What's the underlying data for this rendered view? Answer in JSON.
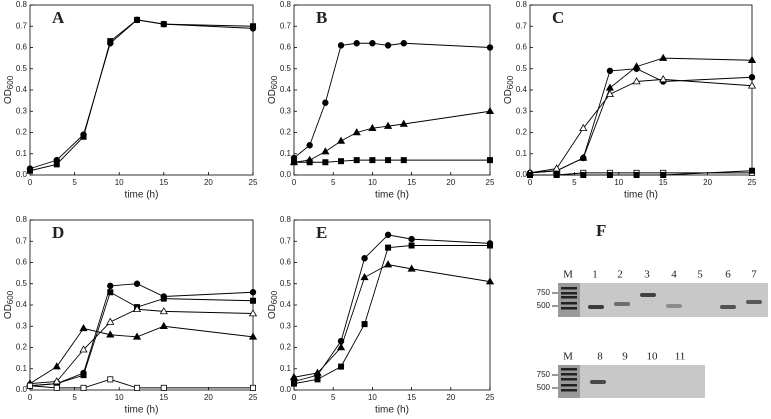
{
  "chart_data": [
    {
      "type": "line",
      "title": "A",
      "x_label": "time (h)",
      "y_label": "OD",
      "y_label_sub": "600",
      "x": [
        0,
        3,
        6,
        9,
        12,
        15,
        25
      ],
      "series": [
        {
          "marker": "circle",
          "filled": true,
          "color": "#000000",
          "values": [
            0.03,
            0.07,
            0.19,
            0.62,
            0.73,
            0.71,
            0.69
          ]
        },
        {
          "marker": "square",
          "filled": true,
          "color": "#000000",
          "values": [
            0.02,
            0.05,
            0.18,
            0.63,
            0.73,
            0.71,
            0.7
          ]
        }
      ],
      "xlim": [
        0,
        25
      ],
      "xticks": [
        0,
        5,
        10,
        15,
        20,
        25
      ],
      "ylim": [
        0,
        0.8
      ],
      "yticks": [
        {
          "value": 0,
          "label": "0.0"
        },
        0.1,
        0.2,
        0.3,
        0.4,
        0.5,
        0.6,
        0.7,
        0.8
      ]
    },
    {
      "type": "line",
      "title": "B",
      "x_label": "time (h)",
      "y_label": "OD",
      "y_label_sub": "600",
      "x": [
        0,
        2,
        4,
        6,
        8,
        10,
        12,
        14,
        25
      ],
      "series": [
        {
          "marker": "circle",
          "filled": true,
          "color": "#000000",
          "values": [
            0.08,
            0.14,
            0.34,
            0.61,
            0.62,
            0.62,
            0.61,
            0.62,
            0.6
          ]
        },
        {
          "marker": "triangle",
          "filled": true,
          "color": "#000000",
          "values": [
            0.06,
            0.07,
            0.11,
            0.16,
            0.2,
            0.22,
            0.23,
            0.24,
            0.3
          ]
        },
        {
          "marker": "square",
          "filled": true,
          "color": "#000000",
          "values": [
            0.06,
            0.06,
            0.06,
            0.065,
            0.07,
            0.07,
            0.07,
            0.07,
            0.07
          ]
        }
      ],
      "xlim": [
        0,
        25
      ],
      "xticks": [
        0,
        5,
        10,
        15,
        20,
        25
      ],
      "ylim": [
        0,
        0.8
      ],
      "yticks": [
        {
          "value": 0,
          "label": "0.0"
        },
        0.1,
        0.2,
        0.3,
        0.4,
        0.5,
        0.6,
        0.7,
        0.8
      ]
    },
    {
      "type": "line",
      "title": "C",
      "x_label": "time (h)",
      "y_label": "OD",
      "y_label_sub": "600",
      "x": [
        0,
        3,
        6,
        9,
        12,
        15,
        25
      ],
      "series": [
        {
          "marker": "circle",
          "filled": true,
          "color": "#000000",
          "values": [
            0.01,
            0.02,
            0.08,
            0.49,
            0.5,
            0.44,
            0.46
          ]
        },
        {
          "marker": "triangle",
          "filled": true,
          "color": "#000000",
          "values": [
            0.01,
            0.02,
            0.08,
            0.41,
            0.51,
            0.55,
            0.54
          ]
        },
        {
          "marker": "triangle",
          "filled": false,
          "color": "#000000",
          "values": [
            0.01,
            0.03,
            0.22,
            0.38,
            0.44,
            0.45,
            0.42
          ]
        },
        {
          "marker": "square",
          "filled": false,
          "color": "#000000",
          "values": [
            0,
            0,
            0.01,
            0.01,
            0.01,
            0.01,
            0.01
          ]
        },
        {
          "marker": "square",
          "filled": true,
          "color": "#000000",
          "values": [
            0,
            0,
            0,
            0,
            0,
            0,
            0.02
          ]
        }
      ],
      "xlim": [
        0,
        25
      ],
      "xticks": [
        0,
        5,
        10,
        15,
        20,
        25
      ],
      "ylim": [
        0,
        0.8
      ],
      "yticks": [
        {
          "value": 0,
          "label": "0.0"
        },
        0.1,
        0.2,
        0.3,
        0.4,
        0.5,
        0.6,
        0.7,
        0.8
      ]
    },
    {
      "type": "line",
      "title": "D",
      "x_label": "time (h)",
      "y_label": "OD",
      "y_label_sub": "600",
      "x": [
        0,
        3,
        6,
        9,
        12,
        15,
        25
      ],
      "series": [
        {
          "marker": "circle",
          "filled": true,
          "color": "#000000",
          "values": [
            0.02,
            0.03,
            0.08,
            0.49,
            0.5,
            0.44,
            0.46
          ]
        },
        {
          "marker": "square",
          "filled": true,
          "color": "#000000",
          "values": [
            0.02,
            0.03,
            0.07,
            0.46,
            0.39,
            0.43,
            0.42
          ]
        },
        {
          "marker": "triangle",
          "filled": false,
          "color": "#000000",
          "values": [
            0.03,
            0.04,
            0.19,
            0.32,
            0.38,
            0.37,
            0.36
          ]
        },
        {
          "marker": "triangle",
          "filled": true,
          "color": "#000000",
          "values": [
            0.03,
            0.11,
            0.29,
            0.26,
            0.25,
            0.3,
            0.25
          ]
        },
        {
          "marker": "square",
          "filled": false,
          "color": "#000000",
          "values": [
            0.02,
            0.01,
            0.01,
            0.05,
            0.01,
            0.01,
            0.01
          ]
        }
      ],
      "xlim": [
        0,
        25
      ],
      "xticks": [
        0,
        5,
        10,
        15,
        20,
        25
      ],
      "ylim": [
        0,
        0.8
      ],
      "yticks": [
        {
          "value": 0,
          "label": "0.0"
        },
        0.1,
        0.2,
        0.3,
        0.4,
        0.5,
        0.6,
        0.7,
        0.8
      ]
    },
    {
      "type": "line",
      "title": "E",
      "x_label": "time (h)",
      "y_label": "OD",
      "y_label_sub": "600",
      "x": [
        0,
        3,
        6,
        9,
        12,
        15,
        25
      ],
      "series": [
        {
          "marker": "circle",
          "filled": true,
          "color": "#000000",
          "values": [
            0.04,
            0.07,
            0.23,
            0.62,
            0.73,
            0.71,
            0.69
          ]
        },
        {
          "marker": "square",
          "filled": true,
          "color": "#000000",
          "values": [
            0.03,
            0.05,
            0.11,
            0.31,
            0.67,
            0.68,
            0.68
          ]
        },
        {
          "marker": "triangle",
          "filled": true,
          "color": "#000000",
          "values": [
            0.06,
            0.08,
            0.2,
            0.53,
            0.59,
            0.57,
            0.51
          ]
        }
      ],
      "xlim": [
        0,
        25
      ],
      "xticks": [
        0,
        5,
        10,
        15,
        20,
        25
      ],
      "ylim": [
        0,
        0.8
      ],
      "yticks": [
        {
          "value": 0,
          "label": "0.0"
        },
        0.1,
        0.2,
        0.3,
        0.4,
        0.5,
        0.6,
        0.7,
        0.8
      ]
    }
  ],
  "gel": {
    "label": "F",
    "top_lanes": [
      "M",
      "1",
      "2",
      "3",
      "4",
      "5",
      "6",
      "7"
    ],
    "top_sizes": [
      "750",
      "500"
    ],
    "bottom_lanes": [
      "M",
      "8",
      "9",
      "10",
      "11"
    ],
    "bottom_sizes": [
      "750",
      "500"
    ]
  }
}
